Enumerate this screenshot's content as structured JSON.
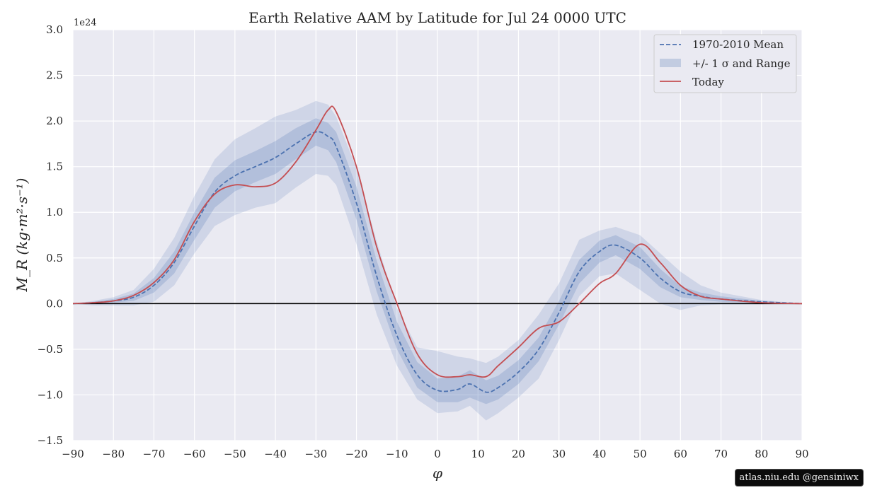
{
  "credit": "atlas.niu.edu  @gensiniwx",
  "chart_data": {
    "type": "line",
    "title": "Earth Relative AAM by Latitude for Jul 24 0000 UTC",
    "xlabel": "φ",
    "ylabel": "M_R (kg·m²·s⁻¹)",
    "y_multiplier_label": "1e24",
    "xlim": [
      -90,
      90
    ],
    "ylim": [
      -1.5,
      3.0
    ],
    "xticks": [
      -90,
      -80,
      -70,
      -60,
      -50,
      -40,
      -30,
      -20,
      -10,
      0,
      10,
      20,
      30,
      40,
      50,
      60,
      70,
      80,
      90
    ],
    "yticks": [
      -1.5,
      -1.0,
      -0.5,
      0.0,
      0.5,
      1.0,
      1.5,
      2.0,
      2.5,
      3.0
    ],
    "grid": true,
    "legend_position": "top-right",
    "colors": {
      "mean": "#4c72b0",
      "band": "#4c72b0",
      "today": "#c44e52",
      "zero": "#000000",
      "background": "#eaeaf2"
    },
    "x": [
      -90,
      -85,
      -80,
      -75,
      -70,
      -65,
      -60,
      -55,
      -50,
      -45,
      -40,
      -35,
      -30,
      -27,
      -25,
      -20,
      -15,
      -10,
      -5,
      0,
      5,
      8,
      12,
      15,
      20,
      25,
      30,
      35,
      40,
      44,
      50,
      55,
      60,
      65,
      70,
      80,
      90
    ],
    "series": [
      {
        "name": "1970-2010 Mean",
        "style": "dashed",
        "values": [
          0,
          0.01,
          0.03,
          0.07,
          0.2,
          0.45,
          0.85,
          1.22,
          1.4,
          1.5,
          1.6,
          1.75,
          1.88,
          1.83,
          1.72,
          1.1,
          0.3,
          -0.35,
          -0.78,
          -0.95,
          -0.94,
          -0.88,
          -0.97,
          -0.92,
          -0.75,
          -0.5,
          -0.1,
          0.35,
          0.57,
          0.64,
          0.5,
          0.28,
          0.13,
          0.08,
          0.05,
          0.02,
          0
        ]
      },
      {
        "name": "Today",
        "style": "solid",
        "values": [
          0,
          0.01,
          0.03,
          0.09,
          0.23,
          0.48,
          0.9,
          1.2,
          1.3,
          1.28,
          1.32,
          1.55,
          1.9,
          2.12,
          2.1,
          1.5,
          0.62,
          0.0,
          -0.55,
          -0.78,
          -0.8,
          -0.78,
          -0.8,
          -0.68,
          -0.48,
          -0.27,
          -0.2,
          0.0,
          0.22,
          0.33,
          0.65,
          0.45,
          0.2,
          0.08,
          0.05,
          0.01,
          0
        ]
      }
    ],
    "bands": [
      {
        "name": "+/- 1 σ and Range",
        "kind": "sigma",
        "lower": [
          0,
          0.0,
          0.01,
          0.03,
          0.12,
          0.33,
          0.7,
          1.05,
          1.23,
          1.33,
          1.42,
          1.58,
          1.73,
          1.68,
          1.55,
          0.92,
          0.13,
          -0.5,
          -0.92,
          -1.08,
          -1.08,
          -1.03,
          -1.1,
          -1.05,
          -0.88,
          -0.63,
          -0.23,
          0.22,
          0.45,
          0.53,
          0.38,
          0.18,
          0.07,
          0.04,
          0.02,
          0.01,
          0
        ]
      },
      {
        "name": "+/- 1 σ and Range",
        "kind": "sigma",
        "upper": [
          0,
          0.02,
          0.05,
          0.11,
          0.28,
          0.57,
          1.0,
          1.38,
          1.57,
          1.67,
          1.78,
          1.92,
          2.03,
          1.98,
          1.88,
          1.28,
          0.47,
          -0.2,
          -0.64,
          -0.82,
          -0.8,
          -0.73,
          -0.84,
          -0.79,
          -0.62,
          -0.37,
          0.03,
          0.48,
          0.69,
          0.75,
          0.62,
          0.38,
          0.19,
          0.12,
          0.08,
          0.03,
          0
        ]
      },
      {
        "name": "+/- 1 σ and Range",
        "kind": "range",
        "lower": [
          0,
          -0.02,
          -0.02,
          -0.02,
          0.02,
          0.2,
          0.55,
          0.85,
          0.97,
          1.05,
          1.1,
          1.27,
          1.42,
          1.4,
          1.3,
          0.65,
          -0.12,
          -0.68,
          -1.05,
          -1.2,
          -1.18,
          -1.12,
          -1.28,
          -1.2,
          -1.03,
          -0.82,
          -0.4,
          0.08,
          0.3,
          0.33,
          0.15,
          0.0,
          -0.07,
          -0.02,
          -0.01,
          -0.01,
          0
        ]
      },
      {
        "name": "+/- 1 σ and Range",
        "kind": "range",
        "upper": [
          0,
          0.03,
          0.07,
          0.15,
          0.38,
          0.72,
          1.18,
          1.58,
          1.8,
          1.92,
          2.05,
          2.12,
          2.22,
          2.18,
          2.05,
          1.48,
          0.68,
          -0.05,
          -0.48,
          -0.52,
          -0.58,
          -0.6,
          -0.65,
          -0.58,
          -0.4,
          -0.12,
          0.22,
          0.7,
          0.8,
          0.84,
          0.75,
          0.55,
          0.35,
          0.2,
          0.12,
          0.04,
          0
        ]
      }
    ],
    "legend": [
      "1970-2010 Mean",
      "+/- 1 σ and Range",
      "Today"
    ]
  }
}
